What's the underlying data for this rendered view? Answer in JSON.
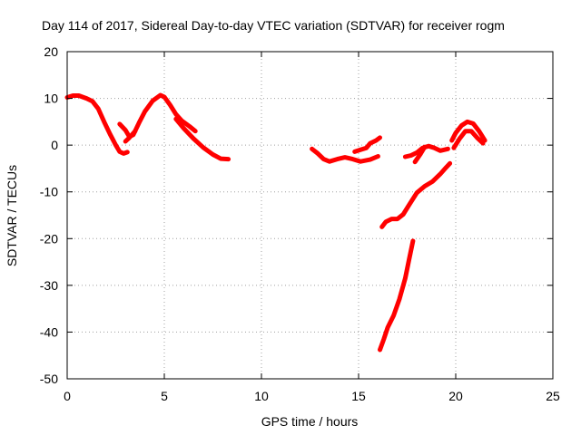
{
  "chart_data": {
    "type": "line",
    "title": "Day 114 of 2017, Sidereal Day-to-day VTEC variation (SDTVAR) for receiver rogm",
    "xlabel": "GPS time / hours",
    "ylabel": "SDTVAR / TECUs",
    "xlim": [
      0,
      25
    ],
    "ylim": [
      -50,
      20
    ],
    "xticks": [
      "0",
      "5",
      "10",
      "15",
      "20",
      "25"
    ],
    "yticks": [
      "-50",
      "-40",
      "-30",
      "-20",
      "-10",
      "0",
      "10",
      "20"
    ],
    "grid": true,
    "color": "#ff0000",
    "segments": [
      [
        [
          0.0,
          10.2
        ],
        [
          0.3,
          10.6
        ],
        [
          0.6,
          10.6
        ],
        [
          1.0,
          10.0
        ],
        [
          1.3,
          9.4
        ],
        [
          1.6,
          7.8
        ],
        [
          1.9,
          5.0
        ],
        [
          2.2,
          2.4
        ],
        [
          2.5,
          0.0
        ],
        [
          2.7,
          -1.4
        ],
        [
          2.9,
          -1.8
        ],
        [
          3.1,
          -1.5
        ]
      ],
      [
        [
          2.7,
          4.5
        ],
        [
          3.0,
          3.2
        ],
        [
          3.2,
          1.8
        ],
        [
          3.4,
          2.2
        ],
        [
          3.7,
          4.8
        ],
        [
          4.0,
          7.2
        ],
        [
          4.4,
          9.5
        ],
        [
          4.8,
          10.7
        ],
        [
          5.0,
          10.3
        ],
        [
          5.3,
          8.6
        ],
        [
          5.6,
          6.6
        ],
        [
          5.9,
          5.2
        ],
        [
          6.3,
          4.0
        ],
        [
          6.6,
          3.0
        ]
      ],
      [
        [
          3.0,
          0.8
        ],
        [
          3.2,
          1.6
        ],
        [
          3.5,
          3.0
        ]
      ],
      [
        [
          5.6,
          5.6
        ],
        [
          6.0,
          3.6
        ],
        [
          6.5,
          1.4
        ],
        [
          7.0,
          -0.5
        ],
        [
          7.5,
          -2.0
        ],
        [
          7.9,
          -2.9
        ],
        [
          8.3,
          -3.0
        ]
      ],
      [
        [
          12.6,
          -0.8
        ],
        [
          12.9,
          -1.8
        ],
        [
          13.2,
          -3.0
        ],
        [
          13.5,
          -3.5
        ],
        [
          13.9,
          -3.0
        ],
        [
          14.3,
          -2.6
        ],
        [
          14.7,
          -3.0
        ],
        [
          15.1,
          -3.5
        ],
        [
          15.6,
          -3.1
        ],
        [
          16.0,
          -2.4
        ]
      ],
      [
        [
          14.8,
          -1.4
        ],
        [
          15.1,
          -1.0
        ],
        [
          15.4,
          -0.6
        ],
        [
          15.6,
          0.4
        ],
        [
          15.9,
          1.0
        ],
        [
          16.1,
          1.6
        ]
      ],
      [
        [
          16.2,
          -17.5
        ],
        [
          16.4,
          -16.4
        ],
        [
          16.7,
          -15.8
        ],
        [
          17.0,
          -15.8
        ],
        [
          17.3,
          -14.8
        ],
        [
          17.6,
          -12.8
        ],
        [
          18.0,
          -10.2
        ],
        [
          18.4,
          -8.8
        ],
        [
          18.8,
          -7.8
        ],
        [
          19.2,
          -6.2
        ],
        [
          19.5,
          -4.8
        ],
        [
          19.7,
          -3.9
        ]
      ],
      [
        [
          17.4,
          -2.5
        ],
        [
          17.7,
          -2.2
        ],
        [
          18.0,
          -1.6
        ],
        [
          18.3,
          -0.6
        ],
        [
          18.6,
          -0.2
        ],
        [
          18.9,
          -0.6
        ],
        [
          19.2,
          -1.2
        ],
        [
          19.4,
          -1.0
        ],
        [
          19.6,
          -0.8
        ]
      ],
      [
        [
          17.9,
          -3.6
        ],
        [
          18.2,
          -1.8
        ],
        [
          18.4,
          -0.4
        ]
      ],
      [
        [
          16.1,
          -43.8
        ],
        [
          16.3,
          -41.5
        ],
        [
          16.5,
          -39.0
        ],
        [
          16.8,
          -36.5
        ],
        [
          17.1,
          -33.0
        ],
        [
          17.4,
          -28.5
        ],
        [
          17.6,
          -24.5
        ],
        [
          17.8,
          -20.5
        ]
      ],
      [
        [
          19.8,
          1.0
        ],
        [
          20.0,
          2.6
        ],
        [
          20.3,
          4.2
        ],
        [
          20.6,
          5.0
        ],
        [
          20.9,
          4.6
        ],
        [
          21.2,
          3.0
        ],
        [
          21.5,
          1.0
        ]
      ],
      [
        [
          19.9,
          -0.6
        ],
        [
          20.2,
          1.4
        ],
        [
          20.5,
          3.0
        ],
        [
          20.8,
          3.0
        ],
        [
          21.1,
          1.6
        ],
        [
          21.4,
          0.4
        ]
      ]
    ]
  }
}
